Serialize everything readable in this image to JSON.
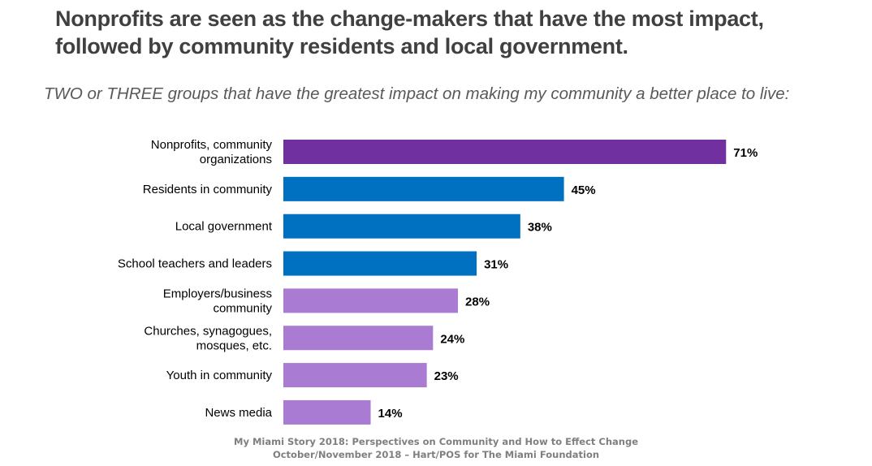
{
  "headline": {
    "line1": "Nonprofits are seen as the change-makers that have the most impact,",
    "line2": "followed by community residents and local government."
  },
  "subtitle": "TWO or THREE groups that have the greatest impact on making my community a better place to live:",
  "chart_data": {
    "type": "bar",
    "orientation": "horizontal",
    "title": "TWO or THREE groups that have the greatest impact on making my community a better place to live:",
    "xlabel": "",
    "ylabel": "",
    "xlim": [
      0,
      100
    ],
    "grid": false,
    "legend": "none",
    "value_suffix": "%",
    "categories": [
      [
        "Nonprofits, community",
        "organizations"
      ],
      [
        "Residents in community"
      ],
      [
        "Local government"
      ],
      [
        "School teachers and leaders"
      ],
      [
        "Employers/business",
        "community"
      ],
      [
        "Churches, synagogues,",
        "mosques, etc."
      ],
      [
        "Youth in community"
      ],
      [
        "News media"
      ]
    ],
    "values": [
      71,
      45,
      38,
      31,
      28,
      24,
      23,
      14
    ],
    "data_labels": [
      "71%",
      "45%",
      "38%",
      "31%",
      "28%",
      "24%",
      "23%",
      "14%"
    ],
    "colors": [
      "#7030a0",
      "#0070c0",
      "#0070c0",
      "#0070c0",
      "#a97bd3",
      "#a97bd3",
      "#a97bd3",
      "#a97bd3"
    ]
  },
  "footer": {
    "line1": "My Miami Story 2018:  Perspectives on Community and How to Effect Change",
    "line2": "October/November 2018 – Hart/POS for The Miami Foundation"
  }
}
